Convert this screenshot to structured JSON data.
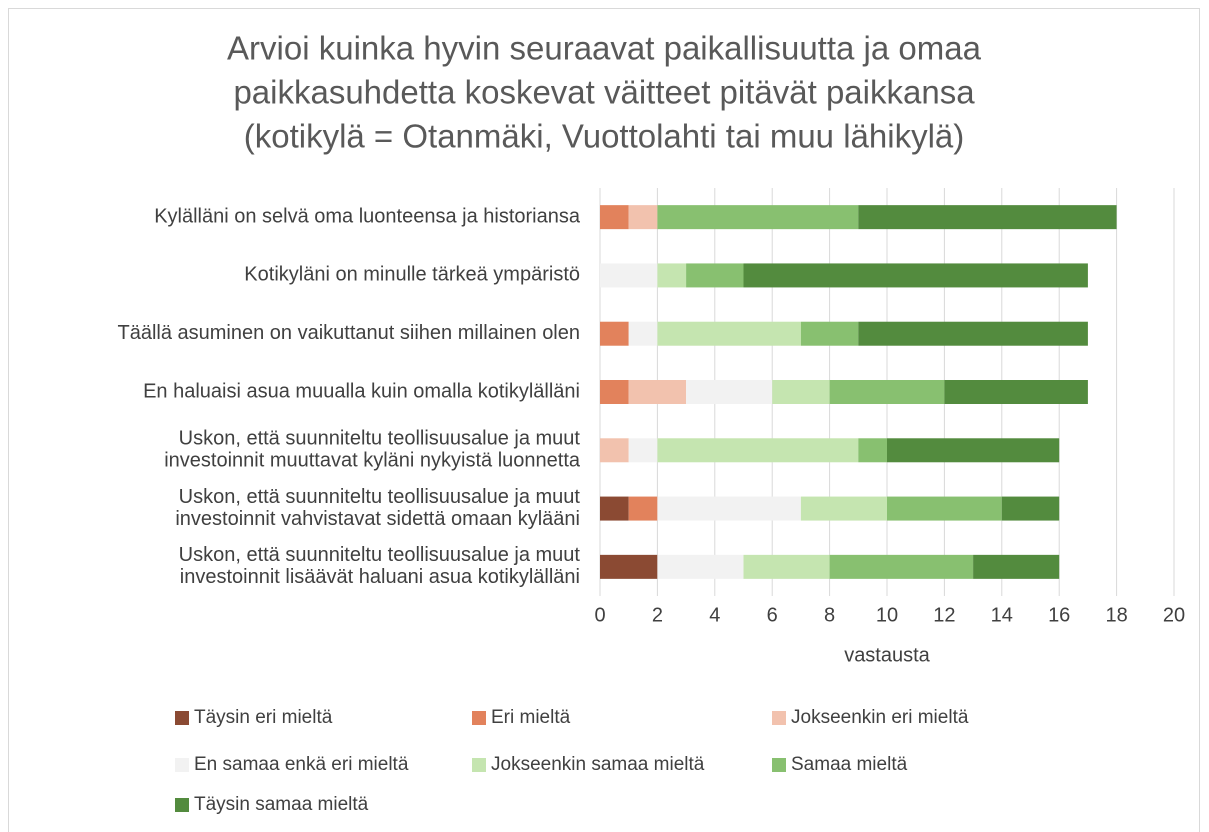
{
  "chart_data": {
    "type": "stacked-bar-horizontal",
    "title": [
      "Arvioi kuinka hyvin seuraavat paikallisuutta ja omaa",
      "paikkasuhdetta koskevat väitteet pitävät paikkansa",
      "(kotikylä = Otanmäki, Vuottolahti tai muu lähikylä)"
    ],
    "x_label": "vastausta",
    "categories": [
      [
        "Kylälläni on selvä oma luonteensa ja historiansa"
      ],
      [
        "Kotikyläni on minulle tärkeä ympäristö"
      ],
      [
        "Täällä asuminen on vaikuttanut siihen millainen olen"
      ],
      [
        "En haluaisi asua muualla kuin omalla kotikylälläni"
      ],
      [
        "Uskon, että suunniteltu teollisuusalue ja muut",
        "investoinnit muuttavat kyläni nykyistä luonnetta"
      ],
      [
        "Uskon, että suunniteltu teollisuusalue ja muut",
        "investoinnit vahvistavat sidettä omaan kylääni"
      ],
      [
        "Uskon, että suunniteltu teollisuusalue ja muut",
        "investoinnit lisäävät haluani asua kotikylälläni"
      ]
    ],
    "series": [
      {
        "name": "Täysin eri mieltä",
        "color": "#8b4a33",
        "values": [
          0,
          0,
          0,
          0,
          0,
          1,
          2
        ]
      },
      {
        "name": "Eri mieltä",
        "color": "#e2825c",
        "values": [
          1,
          0,
          1,
          1,
          0,
          1,
          0
        ]
      },
      {
        "name": "Jokseenkin eri mieltä",
        "color": "#f2c2ae",
        "values": [
          1,
          0,
          0,
          2,
          1,
          0,
          0
        ]
      },
      {
        "name": "En samaa enkä eri mieltä",
        "color": "#f2f2f2",
        "values": [
          0,
          2,
          1,
          3,
          1,
          5,
          3
        ]
      },
      {
        "name": "Jokseenkin samaa mieltä",
        "color": "#c5e5b0",
        "values": [
          0,
          1,
          5,
          2,
          7,
          3,
          3
        ]
      },
      {
        "name": "Samaa mieltä",
        "color": "#88c070",
        "values": [
          7,
          2,
          2,
          4,
          1,
          4,
          5
        ]
      },
      {
        "name": "Täysin samaa mieltä",
        "color": "#538b3e",
        "values": [
          9,
          12,
          8,
          5,
          6,
          2,
          3
        ]
      }
    ],
    "xlim": [
      0,
      20
    ],
    "xticks": [
      0,
      2,
      4,
      6,
      8,
      10,
      12,
      14,
      16,
      18,
      20
    ],
    "grid": true,
    "legend": "bottom"
  }
}
